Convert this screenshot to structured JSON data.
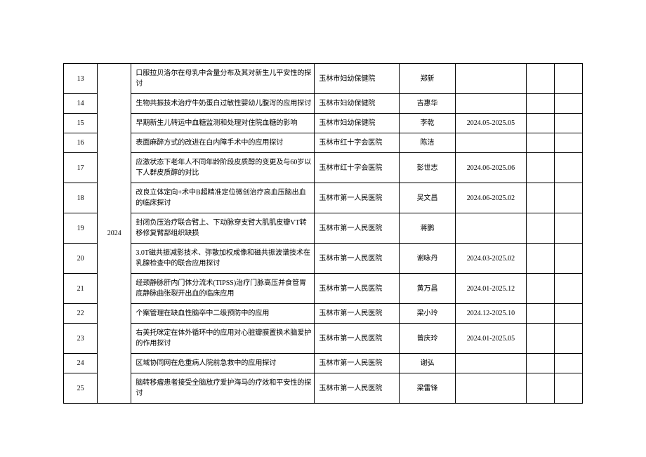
{
  "year": "2024",
  "rows": [
    {
      "num": "13",
      "title": "口服拉贝洛尔在母乳中含量分布及其对新生儿平安性的探讨",
      "hospital": "玉林市妇幼保健院",
      "name": "郑新",
      "date": ""
    },
    {
      "num": "14",
      "title": "生物共振技术治疗牛奶蛋白过敏性婴幼儿腹泻的应用探讨",
      "hospital": "玉林市妇幼保健院",
      "name": "吉惠华",
      "date": ""
    },
    {
      "num": "15",
      "title": "早期新生儿转运中血糖监测和处理对住院血糖的影响",
      "hospital": "玉林市妇幼保健院",
      "name": "李乾",
      "date": "2024.05-2025.05"
    },
    {
      "num": "16",
      "title": "表面麻醉方式的改进在白内障手术中的应用探讨",
      "hospital": "玉林市红十字会医院",
      "name": "陈洁",
      "date": ""
    },
    {
      "num": "17",
      "title": "应激状态下老年人不同年龄阶段皮质醇的变更及与60岁以下人群皮质醇的对比",
      "hospital": "玉林市红十字会医院",
      "name": "彭世志",
      "date": "2024.06-2025.06"
    },
    {
      "num": "18",
      "title": "改良立体定向+术中B超精准定位微创治疗高血压脑出血的临床探讨",
      "hospital": "玉林市第一人民医院",
      "name": "吴文昌",
      "date": "2024.06-2025.02"
    },
    {
      "num": "19",
      "title": "封闭负压治疗联合臂上、下动脉穿支臂大肌肌皮瓣VT转移修复臂部组织缺损",
      "hospital": "玉林市第一人民医院",
      "name": "蒋鹏",
      "date": ""
    },
    {
      "num": "20",
      "title": "3.0T磁共振减影技术、弥散加权成像和磁共振波谱技术在乳腺检查中的联合应用探讨",
      "hospital": "玉林市第一人民医院",
      "name": "谢咏丹",
      "date": "2024.03-2025.02"
    },
    {
      "num": "21",
      "title": "经颈静脉肝内门体分流术(TIPSS)治疗门脉高压并食管胃底静脉曲张裂开出血的临床应用",
      "hospital": "玉林市第一人民医院",
      "name": "黄万昌",
      "date": "2024.01-2025.12"
    },
    {
      "num": "22",
      "title": "个案管理在缺血性脑卒中二级预防中的应用",
      "hospital": "玉林市第一人民医院",
      "name": "梁小玲",
      "date": "2024.12-2025.10"
    },
    {
      "num": "23",
      "title": "右美托咪定在体外循环中的应用对心脏瓣膜置换术脑爱护的作用探讨",
      "hospital": "玉林市第一人民医院",
      "name": "曾庆玲",
      "date": "2024.01-2025.05"
    },
    {
      "num": "24",
      "title": "区域协同网在危重病人院前急救中的应用探讨",
      "hospital": "玉林市第一人民医院",
      "name": "谢弘",
      "date": ""
    },
    {
      "num": "25",
      "title": "脑转移瘤患者接受全脑放疗爱护海马的疗效和平安性的探讨",
      "hospital": "玉林市第一人民医院",
      "name": "梁雷锋",
      "date": ""
    }
  ]
}
